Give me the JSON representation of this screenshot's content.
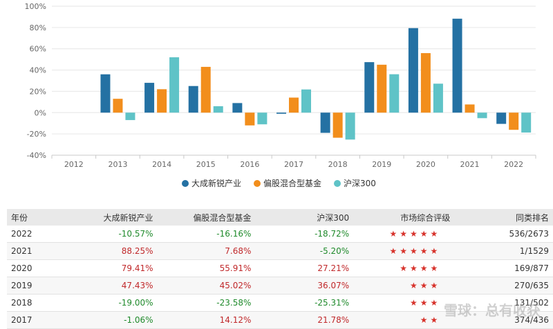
{
  "chart_data": {
    "type": "bar",
    "categories": [
      "2012",
      "2013",
      "2014",
      "2015",
      "2016",
      "2017",
      "2018",
      "2019",
      "2020",
      "2021",
      "2022"
    ],
    "series": [
      {
        "name": "大成新锐产业",
        "color": "#2471a3",
        "values": [
          null,
          36,
          28,
          25,
          9,
          -1.06,
          -19,
          47.43,
          79.41,
          88.25,
          -10.57
        ]
      },
      {
        "name": "偏股混合型基金",
        "color": "#f28e1c",
        "values": [
          null,
          13,
          22,
          43,
          -12,
          14.12,
          -23.58,
          45.02,
          55.91,
          7.68,
          -16.16
        ]
      },
      {
        "name": "沪深300",
        "color": "#5fc3c7",
        "values": [
          null,
          -7,
          52,
          6,
          -11,
          21.78,
          -25.31,
          36.07,
          27.21,
          -5.2,
          -18.72
        ]
      }
    ],
    "ylim": [
      -40,
      100
    ],
    "yticks": [
      -40,
      -20,
      0,
      20,
      40,
      60,
      80,
      100
    ],
    "ytick_labels": [
      "-40%",
      "-20%",
      "0%",
      "20%",
      "40%",
      "60%",
      "80%",
      "100%"
    ],
    "grid": true,
    "legend_placement": "bottom"
  },
  "table": {
    "headers": {
      "year": "年份",
      "fund": "大成新锐产业",
      "category": "偏股混合型基金",
      "index": "沪深300",
      "rating": "市场综合评级",
      "rank": "同类排名"
    },
    "rows": [
      {
        "year": "2022",
        "fund": "-10.57%",
        "category": "-16.16%",
        "index": "-18.72%",
        "stars": "★★★★★",
        "rank": "536/2673"
      },
      {
        "year": "2021",
        "fund": "88.25%",
        "category": "7.68%",
        "index": "-5.20%",
        "stars": "★★★★★",
        "rank": "1/1529"
      },
      {
        "year": "2020",
        "fund": "79.41%",
        "category": "55.91%",
        "index": "27.21%",
        "stars": "★★★★",
        "rank": "169/877"
      },
      {
        "year": "2019",
        "fund": "47.43%",
        "category": "45.02%",
        "index": "36.07%",
        "stars": "★★★",
        "rank": "270/635"
      },
      {
        "year": "2018",
        "fund": "-19.00%",
        "category": "-23.58%",
        "index": "-25.31%",
        "stars": "★★★",
        "rank": "131/502"
      },
      {
        "year": "2017",
        "fund": "-1.06%",
        "category": "14.12%",
        "index": "21.78%",
        "stars": "★★",
        "rank": "374/436"
      }
    ]
  },
  "watermark": "雪球：总有收获"
}
